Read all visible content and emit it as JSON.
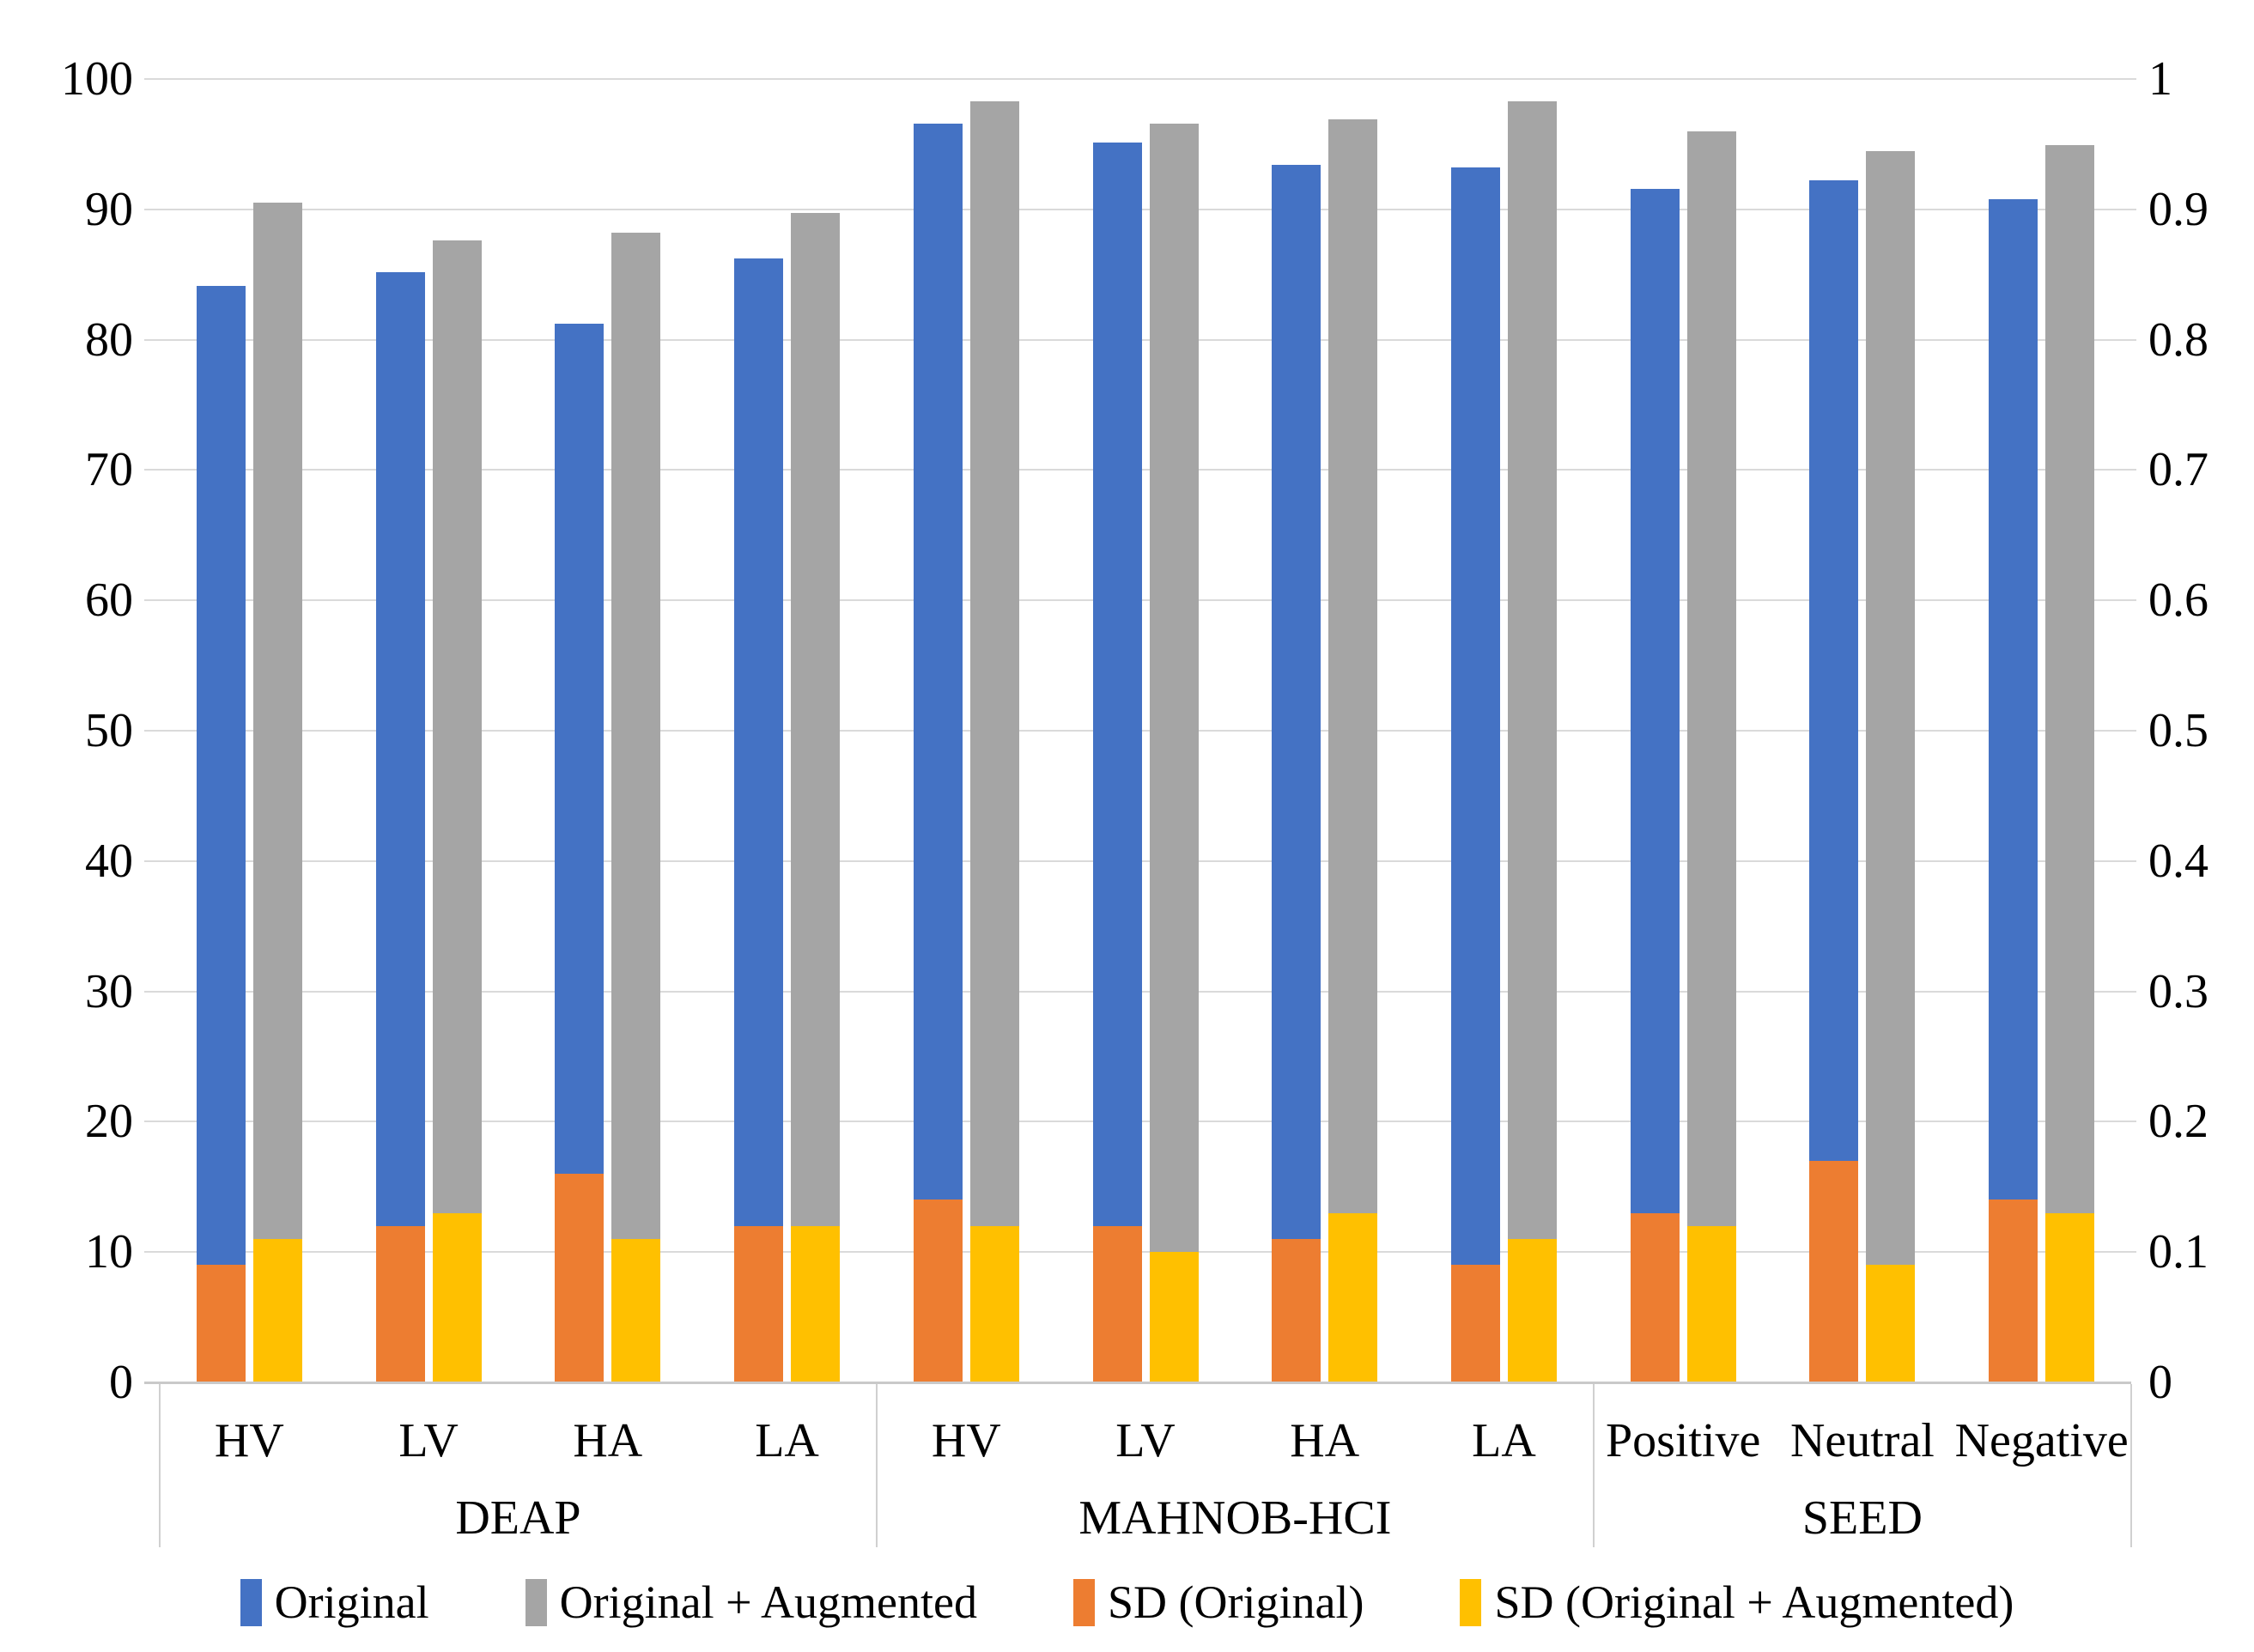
{
  "chart_data": {
    "type": "bar",
    "title": "",
    "xlabel": "",
    "ylabel_left": "",
    "ylabel_right": "",
    "grid": true,
    "legend_position": "bottom",
    "groups": [
      {
        "label": "DEAP",
        "categories": [
          "HV",
          "LV",
          "HA",
          "LA"
        ]
      },
      {
        "label": "MAHNOB-HCI",
        "categories": [
          "HV",
          "LV",
          "HA",
          "LA"
        ]
      },
      {
        "label": "SEED",
        "categories": [
          "Positive",
          "Neutral",
          "Negative"
        ]
      }
    ],
    "series": [
      {
        "name": "Original",
        "axis": "left",
        "color": "#4472C4",
        "values": [
          84.1,
          85.2,
          81.2,
          86.2,
          96.6,
          95.1,
          93.4,
          93.2,
          91.6,
          92.2,
          90.8
        ]
      },
      {
        "name": "Original + Augmented",
        "axis": "left",
        "color": "#A5A5A5",
        "values": [
          90.5,
          87.6,
          88.2,
          89.7,
          98.3,
          96.6,
          96.9,
          98.3,
          96.0,
          94.5,
          94.9
        ]
      },
      {
        "name": "SD (Original)",
        "axis": "right",
        "color": "#ED7D31",
        "values": [
          0.09,
          0.12,
          0.16,
          0.12,
          0.14,
          0.12,
          0.11,
          0.09,
          0.13,
          0.17,
          0.14
        ]
      },
      {
        "name": "SD (Original + Augmented)",
        "axis": "right",
        "color": "#FFC000",
        "values": [
          0.11,
          0.13,
          0.11,
          0.12,
          0.12,
          0.1,
          0.13,
          0.11,
          0.12,
          0.09,
          0.13
        ]
      }
    ],
    "left_axis": {
      "min": 0,
      "max": 100,
      "tick_labels": [
        "100",
        "90",
        "80",
        "70",
        "60",
        "50",
        "40",
        "30",
        "20",
        "10",
        "0"
      ]
    },
    "right_axis": {
      "min": 0,
      "max": 1,
      "tick_labels": [
        "1",
        "0.9",
        "0.8",
        "0.7",
        "0.6",
        "0.5",
        "0.4",
        "0.3",
        "0.2",
        "0.1",
        "0"
      ]
    },
    "colors": {
      "gridline": "#DADADA",
      "axis_line": "#C9C9C9",
      "separator": "#D0D0D0",
      "text": "#000000",
      "background": "#FFFFFF"
    }
  }
}
